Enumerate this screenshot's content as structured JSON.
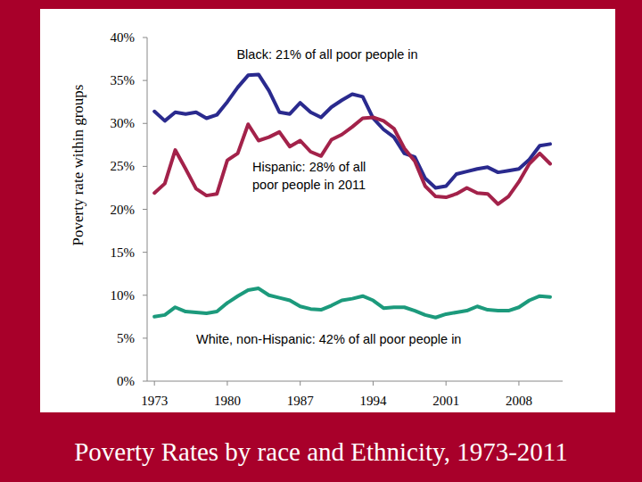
{
  "chart_data": {
    "type": "line",
    "title": "Poverty Rates by race and Ethnicity, 1973-2011",
    "y_label": "Poverty rate within groups",
    "annotations": [
      [
        "Black: 21% of all poor people in"
      ],
      [
        "Hispanic: 28% of all",
        "poor people in 2011"
      ],
      [
        "White, non-Hispanic: 42% of all poor people in"
      ]
    ],
    "x": [
      1973,
      1974,
      1975,
      1976,
      1977,
      1978,
      1979,
      1980,
      1981,
      1982,
      1983,
      1984,
      1985,
      1986,
      1987,
      1988,
      1989,
      1990,
      1991,
      1992,
      1993,
      1994,
      1995,
      1996,
      1997,
      1998,
      1999,
      2000,
      2001,
      2002,
      2003,
      2004,
      2005,
      2006,
      2007,
      2008,
      2009,
      2010,
      2011
    ],
    "series": [
      {
        "color": "#2a2a8e",
        "values": [
          31.4,
          30.3,
          31.3,
          31.1,
          31.3,
          30.6,
          31.0,
          32.5,
          34.2,
          35.6,
          35.7,
          33.8,
          31.3,
          31.1,
          32.4,
          31.3,
          30.7,
          31.9,
          32.7,
          33.4,
          33.1,
          30.6,
          29.3,
          28.4,
          26.5,
          26.1,
          23.6,
          22.5,
          22.7,
          24.1,
          24.4,
          24.7,
          24.9,
          24.3,
          24.5,
          24.7,
          25.8,
          27.4,
          27.6
        ]
      },
      {
        "color": "#a3224a",
        "values": [
          21.9,
          23.0,
          26.9,
          24.7,
          22.4,
          21.6,
          21.8,
          25.7,
          26.5,
          29.9,
          28.0,
          28.4,
          29.0,
          27.3,
          28.0,
          26.7,
          26.2,
          28.1,
          28.7,
          29.6,
          30.6,
          30.7,
          30.3,
          29.4,
          27.1,
          25.6,
          22.7,
          21.5,
          21.4,
          21.8,
          22.5,
          21.9,
          21.8,
          20.6,
          21.5,
          23.2,
          25.3,
          26.5,
          25.3
        ]
      },
      {
        "color": "#1c9a7c",
        "values": [
          7.5,
          7.7,
          8.6,
          8.1,
          8.0,
          7.9,
          8.1,
          9.1,
          9.9,
          10.6,
          10.8,
          10.0,
          9.7,
          9.4,
          8.7,
          8.4,
          8.3,
          8.8,
          9.4,
          9.6,
          9.9,
          9.4,
          8.5,
          8.6,
          8.6,
          8.2,
          7.7,
          7.4,
          7.8,
          8.0,
          8.2,
          8.7,
          8.3,
          8.2,
          8.2,
          8.6,
          9.4,
          9.9,
          9.8
        ]
      }
    ],
    "xlim": [
      1972.3,
      2012.2
    ],
    "xticks": [
      1973,
      1980,
      1987,
      1994,
      2001,
      2008
    ],
    "ylim": [
      0,
      40
    ],
    "yticks": [
      {
        "value": 0,
        "label": "0%"
      },
      {
        "value": 5,
        "label": "5%"
      },
      {
        "value": 10,
        "label": "10%"
      },
      {
        "value": 15,
        "label": "15%"
      },
      {
        "value": 20,
        "label": "20%"
      },
      {
        "value": 25,
        "label": "25%"
      },
      {
        "value": 30,
        "label": "30%"
      },
      {
        "value": 35,
        "label": "35%"
      },
      {
        "value": 40,
        "label": "40%"
      }
    ],
    "grid": false
  }
}
